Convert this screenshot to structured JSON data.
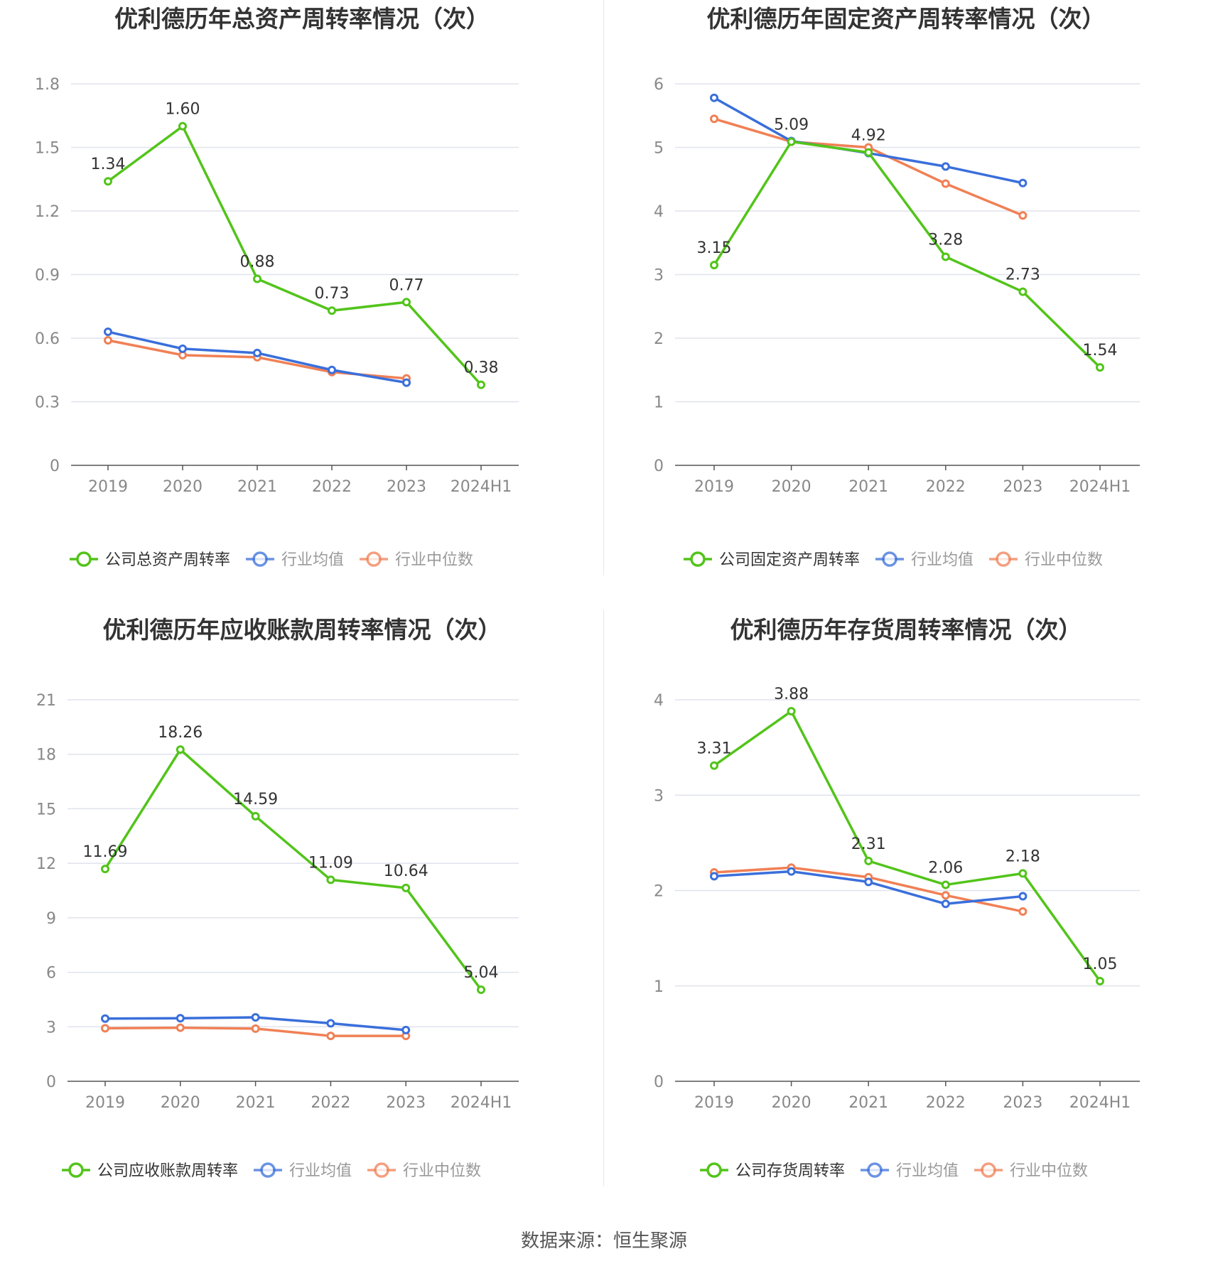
{
  "source": "数据来源：恒生聚源",
  "colors": {
    "company": "#52c41a",
    "avg": "#3a6fdb",
    "median": "#f08055"
  },
  "chart_data": [
    {
      "type": "line",
      "title": "优利德历年总资产周转率情况（次）",
      "categories": [
        "2019",
        "2020",
        "2021",
        "2022",
        "2023",
        "2024H1"
      ],
      "ylim": [
        0,
        1.8
      ],
      "yticks": [
        "0",
        "0.3",
        "0.6",
        "0.9",
        "1.2",
        "1.5",
        "1.8"
      ],
      "grid": true,
      "legend_position": "bottom",
      "series": [
        {
          "name": "公司总资产周转率",
          "values": [
            1.34,
            1.6,
            0.88,
            0.73,
            0.77,
            0.38
          ],
          "labels": [
            "1.34",
            "1.60",
            "0.88",
            "0.73",
            "0.77",
            "0.38"
          ]
        },
        {
          "name": "行业均值",
          "values": [
            0.63,
            0.55,
            0.53,
            0.45,
            0.39,
            null
          ]
        },
        {
          "name": "行业中位数",
          "values": [
            0.59,
            0.52,
            0.51,
            0.44,
            0.41,
            null
          ]
        }
      ]
    },
    {
      "type": "line",
      "title": "优利德历年固定资产周转率情况（次）",
      "categories": [
        "2019",
        "2020",
        "2021",
        "2022",
        "2023",
        "2024H1"
      ],
      "ylim": [
        0,
        6
      ],
      "yticks": [
        "0",
        "1",
        "2",
        "3",
        "4",
        "5",
        "6"
      ],
      "grid": true,
      "legend_position": "bottom",
      "series": [
        {
          "name": "公司固定资产周转率",
          "values": [
            3.15,
            5.09,
            4.92,
            3.28,
            2.73,
            1.54
          ],
          "labels": [
            "3.15",
            "5.09",
            "4.92",
            "3.28",
            "2.73",
            "1.54"
          ]
        },
        {
          "name": "行业均值",
          "values": [
            5.78,
            5.1,
            4.91,
            4.7,
            4.44,
            null
          ]
        },
        {
          "name": "行业中位数",
          "values": [
            5.45,
            5.09,
            5.0,
            4.43,
            3.93,
            null
          ]
        }
      ]
    },
    {
      "type": "line",
      "title": "优利德历年应收账款周转率情况（次）",
      "categories": [
        "2019",
        "2020",
        "2021",
        "2022",
        "2023",
        "2024H1"
      ],
      "ylim": [
        0,
        21
      ],
      "yticks": [
        "0",
        "3",
        "6",
        "9",
        "12",
        "15",
        "18",
        "21"
      ],
      "grid": true,
      "legend_position": "bottom",
      "series": [
        {
          "name": "公司应收账款周转率",
          "values": [
            11.69,
            18.26,
            14.59,
            11.09,
            10.64,
            5.04
          ],
          "labels": [
            "11.69",
            "18.26",
            "14.59",
            "11.09",
            "10.64",
            "5.04"
          ]
        },
        {
          "name": "行业均值",
          "values": [
            3.45,
            3.47,
            3.52,
            3.19,
            2.82,
            null
          ]
        },
        {
          "name": "行业中位数",
          "values": [
            2.92,
            2.95,
            2.9,
            2.5,
            2.5,
            null
          ]
        }
      ]
    },
    {
      "type": "line",
      "title": "优利德历年存货周转率情况（次）",
      "categories": [
        "2019",
        "2020",
        "2021",
        "2022",
        "2023",
        "2024H1"
      ],
      "ylim": [
        0,
        4
      ],
      "yticks": [
        "0",
        "1",
        "2",
        "3",
        "4"
      ],
      "grid": true,
      "legend_position": "bottom",
      "series": [
        {
          "name": "公司存货周转率",
          "values": [
            3.31,
            3.88,
            2.31,
            2.06,
            2.18,
            1.05
          ],
          "labels": [
            "3.31",
            "3.88",
            "2.31",
            "2.06",
            "2.18",
            "1.05"
          ]
        },
        {
          "name": "行业均值",
          "values": [
            2.15,
            2.2,
            2.09,
            1.86,
            1.94,
            null
          ]
        },
        {
          "name": "行业中位数",
          "values": [
            2.19,
            2.24,
            2.14,
            1.95,
            1.78,
            null
          ]
        }
      ]
    }
  ]
}
